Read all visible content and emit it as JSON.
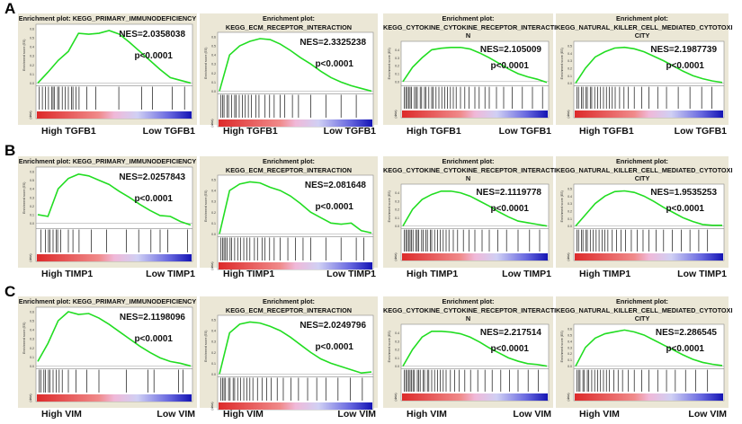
{
  "figure": {
    "row_labels": [
      "A",
      "B",
      "C"
    ],
    "y_axis_label": "Enrichment score (ES)",
    "ranked_label": "(data)"
  },
  "chart_data": [
    {
      "row": "A",
      "type": "line",
      "title": "Enrichment plot: KEGG_PRIMARY_IMMUNODEFICIENCY",
      "nes": "NES=2.0358038",
      "p": "p<0.0001",
      "high": "High TGFB1",
      "low": "Low TGFB1",
      "ylim": [
        0,
        0.6
      ],
      "yticks": [
        "0.0",
        "0.1",
        "0.2",
        "0.3",
        "0.4",
        "0.5",
        "0.6"
      ],
      "es": [
        0,
        0.12,
        0.25,
        0.35,
        0.55,
        0.54,
        0.55,
        0.58,
        0.54,
        0.45,
        0.35,
        0.25,
        0.15,
        0.06,
        0.03,
        0
      ],
      "hits": [
        0.01,
        0.03,
        0.05,
        0.07,
        0.09,
        0.1,
        0.11,
        0.13,
        0.14,
        0.16,
        0.18,
        0.2,
        0.22,
        0.23,
        0.25,
        0.27,
        0.32,
        0.38,
        0.53,
        0.68,
        0.75,
        0.88,
        0.96
      ]
    },
    {
      "row": "A",
      "type": "line",
      "title": "Enrichment plot: KEGG_ECM_RECEPTOR_INTERACTION",
      "nes": "NES=2.3325238",
      "p": "p<0.0001",
      "high": "High TGFB1",
      "low": "Low TGFB1",
      "ylim": [
        0,
        0.6
      ],
      "yticks": [
        "0.0",
        "0.1",
        "0.2",
        "0.3",
        "0.4",
        "0.5",
        "0.6"
      ],
      "es": [
        0,
        0.4,
        0.5,
        0.55,
        0.58,
        0.57,
        0.52,
        0.45,
        0.37,
        0.3,
        0.22,
        0.15,
        0.1,
        0.06,
        0.03,
        0
      ],
      "hits": [
        0.01,
        0.02,
        0.03,
        0.05,
        0.06,
        0.08,
        0.1,
        0.11,
        0.13,
        0.15,
        0.17,
        0.19,
        0.21,
        0.24,
        0.26,
        0.3,
        0.33,
        0.36,
        0.4,
        0.43,
        0.48,
        0.52,
        0.6,
        0.7,
        0.8,
        0.9
      ]
    },
    {
      "row": "A",
      "type": "line",
      "title": "Enrichment plot:\nKEGG_CYTOKINE_CYTOKINE_RECEPTOR_INTERACTIO\nN",
      "nes": "NES=2.105009",
      "p": "p<0.0001",
      "high": "High TGFB1",
      "low": "Low TGFB1",
      "ylim": [
        -0.02,
        0.45
      ],
      "yticks": [
        "0.0",
        "0.1",
        "0.2",
        "0.3",
        "0.4"
      ],
      "es": [
        0,
        0.18,
        0.3,
        0.4,
        0.42,
        0.43,
        0.43,
        0.41,
        0.36,
        0.3,
        0.23,
        0.16,
        0.1,
        0.06,
        0.03,
        -0.01
      ],
      "hits": [
        0.01,
        0.02,
        0.03,
        0.04,
        0.05,
        0.06,
        0.08,
        0.09,
        0.1,
        0.12,
        0.13,
        0.15,
        0.16,
        0.18,
        0.2,
        0.21,
        0.23,
        0.25,
        0.27,
        0.29,
        0.31,
        0.33,
        0.35,
        0.37,
        0.4,
        0.43,
        0.46,
        0.5,
        0.53,
        0.57,
        0.6,
        0.65,
        0.7,
        0.76,
        0.83,
        0.9,
        0.97
      ]
    },
    {
      "row": "A",
      "type": "line",
      "title": "Enrichment plot:\nKEGG_NATURAL_KILLER_CELL_MEDIATED_CYTOTOXI\nCITY",
      "nes": "NES=2.1987739",
      "p": "p<0.0001",
      "high": "High TGFB1",
      "low": "Low TGFB1",
      "ylim": [
        0,
        0.5
      ],
      "yticks": [
        "0.0",
        "0.1",
        "0.2",
        "0.3",
        "0.4",
        "0.5"
      ],
      "es": [
        0,
        0.2,
        0.35,
        0.42,
        0.47,
        0.48,
        0.46,
        0.42,
        0.36,
        0.3,
        0.23,
        0.16,
        0.1,
        0.06,
        0.03,
        0.01
      ],
      "hits": [
        0.01,
        0.02,
        0.04,
        0.05,
        0.07,
        0.08,
        0.1,
        0.11,
        0.13,
        0.15,
        0.17,
        0.19,
        0.21,
        0.23,
        0.25,
        0.27,
        0.3,
        0.33,
        0.36,
        0.4,
        0.45,
        0.5,
        0.56,
        0.62,
        0.7,
        0.78,
        0.86,
        0.93
      ]
    },
    {
      "row": "B",
      "type": "line",
      "title": "Enrichment plot: KEGG_PRIMARY_IMMUNODEFICIENCY",
      "nes": "NES=2.0257843",
      "p": "p<0.0001",
      "high": "High TIMP1",
      "low": "Low TIMP1",
      "ylim": [
        -0.03,
        0.6
      ],
      "yticks": [
        "0.0",
        "0.1",
        "0.2",
        "0.3",
        "0.4",
        "0.5",
        "0.6"
      ],
      "es": [
        0.1,
        0.08,
        0.4,
        0.52,
        0.57,
        0.55,
        0.5,
        0.45,
        0.37,
        0.3,
        0.22,
        0.15,
        0.09,
        0.08,
        0.02,
        -0.02
      ],
      "hits": [
        0.02,
        0.05,
        0.07,
        0.08,
        0.1,
        0.12,
        0.13,
        0.15,
        0.2,
        0.23,
        0.27,
        0.35,
        0.45,
        0.58,
        0.66,
        0.74,
        0.8,
        0.85,
        0.98
      ]
    },
    {
      "row": "B",
      "type": "line",
      "title": "Enrichment plot: KEGG_ECM_RECEPTOR_INTERACTION",
      "nes": "NES=2.081648",
      "p": "p<0.0001",
      "high": "High TIMP1",
      "low": "Low TIMP1",
      "ylim": [
        0,
        0.5
      ],
      "yticks": [
        "0.0",
        "0.1",
        "0.2",
        "0.3",
        "0.4",
        "0.5"
      ],
      "es": [
        0,
        0.4,
        0.46,
        0.48,
        0.47,
        0.43,
        0.4,
        0.35,
        0.28,
        0.2,
        0.15,
        0.1,
        0.09,
        0.1,
        0.03,
        0.01
      ],
      "hits": [
        0.01,
        0.02,
        0.03,
        0.04,
        0.05,
        0.07,
        0.08,
        0.1,
        0.12,
        0.14,
        0.16,
        0.18,
        0.2,
        0.23,
        0.25,
        0.28,
        0.3,
        0.33,
        0.36,
        0.4,
        0.45,
        0.5,
        0.55,
        0.6,
        0.7,
        0.8,
        0.9,
        0.95
      ]
    },
    {
      "row": "B",
      "type": "line",
      "title": "Enrichment plot:\nKEGG_CYTOKINE_CYTOKINE_RECEPTOR_INTERACTIO\nN",
      "nes": "NES=2.1119778",
      "p": "p<0.0001",
      "high": "High TIMP1",
      "low": "Low TIMP1",
      "ylim": [
        0,
        0.45
      ],
      "yticks": [
        "0.0",
        "0.1",
        "0.2",
        "0.3",
        "0.4"
      ],
      "es": [
        0,
        0.2,
        0.32,
        0.38,
        0.42,
        0.42,
        0.4,
        0.36,
        0.3,
        0.24,
        0.17,
        0.11,
        0.06,
        0.04,
        0.02,
        0
      ],
      "hits": [
        0.01,
        0.02,
        0.03,
        0.04,
        0.05,
        0.06,
        0.07,
        0.09,
        0.1,
        0.11,
        0.13,
        0.14,
        0.16,
        0.17,
        0.19,
        0.2,
        0.22,
        0.24,
        0.26,
        0.28,
        0.3,
        0.32,
        0.35,
        0.38,
        0.42,
        0.46,
        0.5,
        0.55,
        0.6,
        0.66,
        0.72,
        0.8,
        0.88,
        0.95
      ]
    },
    {
      "row": "B",
      "type": "line",
      "title": "Enrichment plot:\nKEGG_NATURAL_KILLER_CELL_MEDIATED_CYTOTOXI\nCITY",
      "nes": "NES=1.9535253",
      "p": "p<0.0001",
      "high": "High TIMP1",
      "low": "Low TIMP1",
      "ylim": [
        0,
        0.5
      ],
      "yticks": [
        "0.0",
        "0.1",
        "0.2",
        "0.3",
        "0.4",
        "0.5"
      ],
      "es": [
        0,
        0.15,
        0.3,
        0.4,
        0.46,
        0.47,
        0.45,
        0.4,
        0.33,
        0.25,
        0.18,
        0.11,
        0.06,
        0.02,
        0.01,
        0.01
      ],
      "hits": [
        0.01,
        0.02,
        0.04,
        0.05,
        0.07,
        0.08,
        0.1,
        0.12,
        0.14,
        0.16,
        0.18,
        0.2,
        0.22,
        0.25,
        0.28,
        0.31,
        0.34,
        0.38,
        0.42,
        0.46,
        0.5,
        0.55,
        0.6,
        0.66,
        0.72,
        0.78,
        0.84,
        0.9
      ]
    },
    {
      "row": "C",
      "type": "line",
      "title": "Enrichment plot: KEGG_PRIMARY_IMMUNODEFICIENCY",
      "nes": "NES=2.1198096",
      "p": "p<0.0001",
      "high": "High VIM",
      "low": "Low VIM",
      "ylim": [
        0,
        0.6
      ],
      "yticks": [
        "0.0",
        "0.1",
        "0.2",
        "0.3",
        "0.4",
        "0.5",
        "0.6"
      ],
      "es": [
        0.05,
        0.25,
        0.5,
        0.6,
        0.57,
        0.58,
        0.53,
        0.46,
        0.38,
        0.3,
        0.22,
        0.15,
        0.09,
        0.05,
        0.03,
        0
      ],
      "hits": [
        0.01,
        0.02,
        0.04,
        0.05,
        0.07,
        0.08,
        0.1,
        0.12,
        0.14,
        0.16,
        0.2,
        0.25,
        0.32,
        0.4,
        0.58,
        0.72,
        0.76,
        0.92,
        0.95
      ]
    },
    {
      "row": "C",
      "type": "line",
      "title": "Enrichment plot: KEGG_ECM_RECEPTOR_INTERACTION",
      "nes": "NES=2.0249796",
      "p": "p<0.0001",
      "high": "High VIM",
      "low": "Low VIM",
      "ylim": [
        0,
        0.5
      ],
      "yticks": [
        "0.0",
        "0.1",
        "0.2",
        "0.3",
        "0.4",
        "0.5"
      ],
      "es": [
        0,
        0.38,
        0.46,
        0.48,
        0.47,
        0.44,
        0.4,
        0.34,
        0.27,
        0.2,
        0.14,
        0.1,
        0.07,
        0.04,
        0.01,
        0.02
      ],
      "hits": [
        0.01,
        0.02,
        0.03,
        0.04,
        0.06,
        0.07,
        0.09,
        0.1,
        0.12,
        0.14,
        0.16,
        0.18,
        0.2,
        0.22,
        0.25,
        0.28,
        0.31,
        0.34,
        0.38,
        0.42,
        0.47,
        0.52,
        0.58,
        0.64,
        0.7,
        0.78,
        0.86,
        0.94
      ]
    },
    {
      "row": "C",
      "type": "line",
      "title": "Enrichment plot:\nKEGG_CYTOKINE_CYTOKINE_RECEPTOR_INTERACTIO\nN",
      "nes": "NES=2.217514",
      "p": "p<0.0001",
      "high": "High VIM",
      "low": "Low VIM",
      "ylim": [
        0,
        0.45
      ],
      "yticks": [
        "0.0",
        "0.1",
        "0.2",
        "0.3",
        "0.4"
      ],
      "es": [
        0,
        0.2,
        0.35,
        0.42,
        0.42,
        0.41,
        0.39,
        0.35,
        0.29,
        0.22,
        0.16,
        0.1,
        0.06,
        0.03,
        0.02,
        0
      ],
      "hits": [
        0.01,
        0.02,
        0.03,
        0.04,
        0.05,
        0.06,
        0.07,
        0.08,
        0.1,
        0.11,
        0.12,
        0.14,
        0.15,
        0.17,
        0.18,
        0.2,
        0.22,
        0.24,
        0.26,
        0.28,
        0.3,
        0.33,
        0.36,
        0.39,
        0.43,
        0.47,
        0.52,
        0.57,
        0.62,
        0.68,
        0.74,
        0.8,
        0.87,
        0.94
      ]
    },
    {
      "row": "C",
      "type": "line",
      "title": "Enrichment plot:\nKEGG_NATURAL_KILLER_CELL_MEDIATED_CYTOTOXI\nCITY",
      "nes": "NES=2.286545",
      "p": "p<0.0001",
      "high": "High VIM",
      "low": "Low VIM",
      "ylim": [
        0,
        0.6
      ],
      "yticks": [
        "0.0",
        "0.1",
        "0.2",
        "0.3",
        "0.4",
        "0.5",
        "0.6"
      ],
      "es": [
        0,
        0.3,
        0.45,
        0.52,
        0.55,
        0.58,
        0.55,
        0.5,
        0.42,
        0.34,
        0.26,
        0.18,
        0.11,
        0.06,
        0.03,
        0.01
      ],
      "hits": [
        0.01,
        0.02,
        0.03,
        0.05,
        0.06,
        0.08,
        0.09,
        0.11,
        0.13,
        0.15,
        0.17,
        0.19,
        0.21,
        0.23,
        0.26,
        0.29,
        0.32,
        0.36,
        0.4,
        0.45,
        0.5,
        0.56,
        0.62,
        0.68,
        0.75,
        0.82,
        0.9
      ]
    }
  ]
}
